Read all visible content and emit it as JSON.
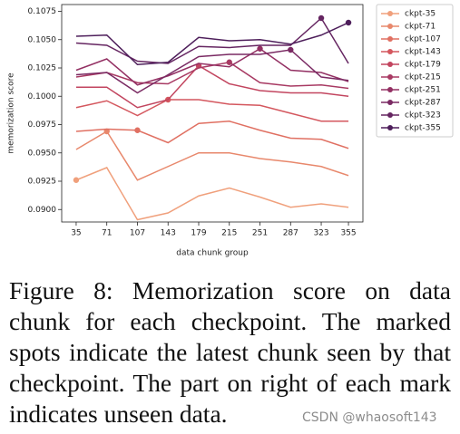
{
  "chart_data": {
    "type": "line",
    "x_label": "data chunk group",
    "y_label": "memorization score",
    "x": [
      35,
      71,
      107,
      143,
      179,
      215,
      251,
      287,
      323,
      355
    ],
    "xlim": [
      18,
      372
    ],
    "xticks": [
      35,
      71,
      107,
      143,
      179,
      215,
      251,
      287,
      323,
      355
    ],
    "ylim": [
      0.0889,
      0.1081
    ],
    "yticks": [
      {
        "value": 0.09,
        "label": "0.0900"
      },
      {
        "value": 0.0925,
        "label": "0.0925"
      },
      {
        "value": 0.095,
        "label": "0.0950"
      },
      {
        "value": 0.0975,
        "label": "0.0975"
      },
      {
        "value": 0.1,
        "label": "0.1000"
      },
      {
        "value": 0.1025,
        "label": "0.1025"
      },
      {
        "value": 0.105,
        "label": "0.1050"
      },
      {
        "value": 0.1075,
        "label": "0.1075"
      }
    ],
    "legend": "outside upper right",
    "series": [
      {
        "name": "ckpt-35",
        "color": "#f0a07c",
        "marker_at": 0,
        "values": [
          0.0926,
          0.0937,
          0.0891,
          0.0897,
          0.0912,
          0.0919,
          0.0911,
          0.0902,
          0.0905,
          0.0902
        ]
      },
      {
        "name": "ckpt-71",
        "color": "#e8886c",
        "marker_at": 1,
        "values": [
          0.0953,
          0.0969,
          0.0926,
          0.0938,
          0.095,
          0.095,
          0.0945,
          0.0942,
          0.0938,
          0.093
        ]
      },
      {
        "name": "ckpt-107",
        "color": "#e07062",
        "marker_at": 2,
        "values": [
          0.0969,
          0.0971,
          0.097,
          0.0959,
          0.0976,
          0.0978,
          0.097,
          0.0963,
          0.0962,
          0.0954
        ]
      },
      {
        "name": "ckpt-143",
        "color": "#d4575e",
        "marker_at": 3,
        "values": [
          0.099,
          0.0996,
          0.0983,
          0.0997,
          0.0997,
          0.0993,
          0.0992,
          0.0985,
          0.0978,
          0.0978
        ]
      },
      {
        "name": "ckpt-179",
        "color": "#c2455f",
        "marker_at": 4,
        "values": [
          0.1008,
          0.1008,
          0.099,
          0.0997,
          0.1027,
          0.1011,
          0.1005,
          0.1003,
          0.1003,
          0.1
        ]
      },
      {
        "name": "ckpt-215",
        "color": "#a83a63",
        "marker_at": 5,
        "values": [
          0.1017,
          0.1021,
          0.1012,
          0.1011,
          0.1025,
          0.103,
          0.1012,
          0.1009,
          0.101,
          0.1007
        ]
      },
      {
        "name": "ckpt-251",
        "color": "#933063",
        "marker_at": 6,
        "values": [
          0.1023,
          0.1033,
          0.101,
          0.1018,
          0.1029,
          0.1026,
          0.1042,
          0.1023,
          0.1021,
          0.1013
        ]
      },
      {
        "name": "ckpt-287",
        "color": "#7a2a63",
        "marker_at": 7,
        "values": [
          0.1019,
          0.1021,
          0.1003,
          0.1019,
          0.1035,
          0.1037,
          0.1037,
          0.1041,
          0.1017,
          0.1014
        ]
      },
      {
        "name": "ckpt-323",
        "color": "#652561",
        "marker_at": 8,
        "values": [
          0.1047,
          0.1045,
          0.1031,
          0.1029,
          0.1044,
          0.1043,
          0.1045,
          0.1045,
          0.1069,
          0.1029
        ]
      },
      {
        "name": "ckpt-355",
        "color": "#4e1f5b",
        "marker_at": 9,
        "values": [
          0.1053,
          0.1054,
          0.1028,
          0.103,
          0.1052,
          0.1049,
          0.105,
          0.1046,
          0.1054,
          0.1065
        ]
      }
    ]
  },
  "caption": "Figure 8: Memorization score on data chunk for each checkpoint. The marked spots indicate the latest chunk seen by that checkpoint.  The part on right of each mark indicates unseen data.",
  "watermark": "CSDN @whaosoft143"
}
